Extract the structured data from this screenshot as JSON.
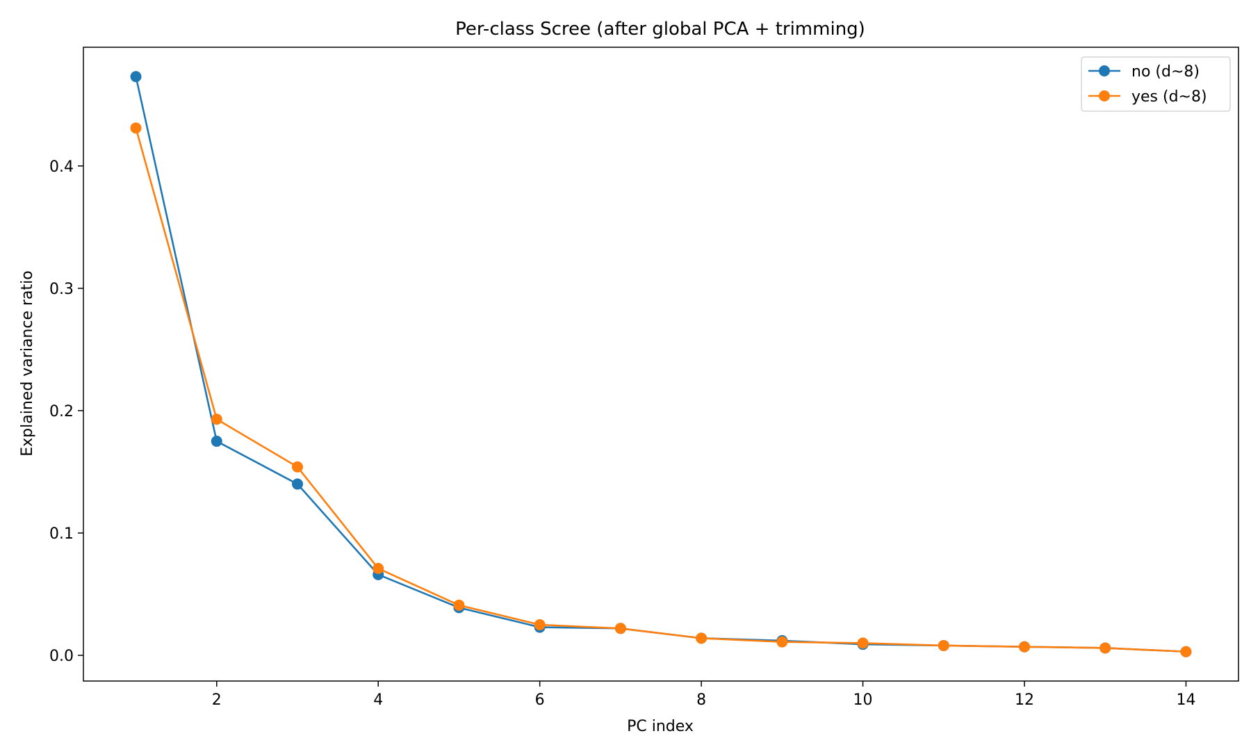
{
  "chart_data": {
    "type": "line",
    "title": "Per-class Scree (after global PCA + trimming)",
    "xlabel": "PC index",
    "ylabel": "Explained variance ratio",
    "x": [
      1,
      2,
      3,
      4,
      5,
      6,
      7,
      8,
      9,
      10,
      11,
      12,
      13,
      14
    ],
    "xlim": [
      0.35,
      14.65
    ],
    "ylim": [
      -0.021,
      0.497
    ],
    "xticks": [
      2,
      4,
      6,
      8,
      10,
      12,
      14
    ],
    "yticks": [
      0.0,
      0.1,
      0.2,
      0.3,
      0.4
    ],
    "ytick_labels": [
      "0.0",
      "0.1",
      "0.2",
      "0.3",
      "0.4"
    ],
    "grid": false,
    "legend_position": "top-right",
    "series": [
      {
        "name": "no (d~8)",
        "color": "#1f77b4",
        "values": [
          0.473,
          0.175,
          0.14,
          0.066,
          0.039,
          0.023,
          0.022,
          0.014,
          0.012,
          0.009,
          0.008,
          0.007,
          0.006,
          0.003
        ]
      },
      {
        "name": "yes (d~8)",
        "color": "#ff7f0e",
        "values": [
          0.431,
          0.193,
          0.154,
          0.071,
          0.041,
          0.025,
          0.022,
          0.014,
          0.011,
          0.01,
          0.008,
          0.007,
          0.006,
          0.003
        ]
      }
    ]
  }
}
